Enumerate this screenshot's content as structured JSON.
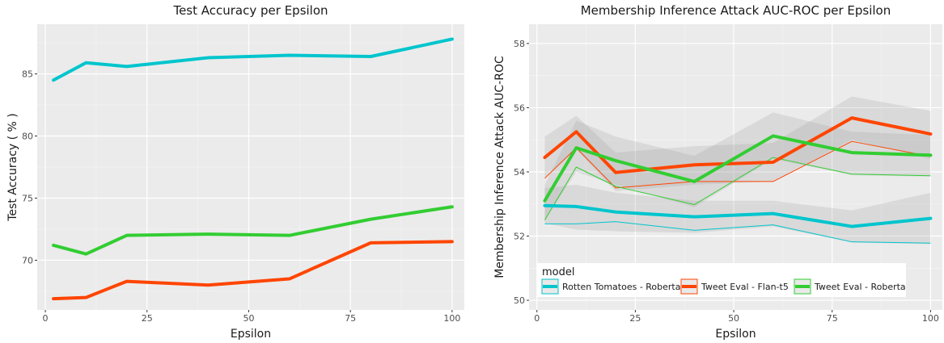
{
  "chart_data": [
    {
      "type": "line",
      "title": "Test Accuracy per Epsilon",
      "xlabel": "Epsilon",
      "ylabel": "Test Accuracy ( % )",
      "xlim": [
        -2,
        103
      ],
      "ylim": [
        66,
        89
      ],
      "x_ticks": [
        0,
        25,
        50,
        75,
        100
      ],
      "y_ticks": [
        70,
        75,
        80,
        85
      ],
      "grid": true,
      "legend": "none",
      "x": [
        2,
        10,
        20,
        40,
        60,
        80,
        100
      ],
      "series": [
        {
          "color": "#00c5cd",
          "values": [
            84.5,
            85.9,
            85.6,
            86.3,
            86.5,
            86.4,
            87.8
          ]
        },
        {
          "color": "#ff4500",
          "values": [
            66.9,
            67.0,
            68.3,
            68.0,
            68.5,
            71.4,
            71.5
          ]
        },
        {
          "color": "#32cd32",
          "values": [
            71.2,
            70.5,
            72.0,
            72.1,
            72.0,
            73.3,
            74.3
          ]
        }
      ]
    },
    {
      "type": "line",
      "title": "Membership Inference Attack AUC-ROC per Epsilon",
      "xlabel": "Epsilon",
      "ylabel": "Membership Inference Attack AUC-ROC",
      "xlim": [
        -2,
        103
      ],
      "ylim": [
        49.7,
        58.6
      ],
      "x_ticks": [
        0,
        25,
        50,
        75,
        100
      ],
      "y_ticks": [
        50,
        52,
        54,
        56,
        58
      ],
      "grid": true,
      "legend": "bottom-left",
      "legend_title": "model",
      "x": [
        2,
        10,
        20,
        40,
        60,
        80,
        100
      ],
      "series": [
        {
          "name": "Rotten Tomatoes - Roberta",
          "color": "#00c5cd",
          "values": [
            52.95,
            52.92,
            52.75,
            52.6,
            52.7,
            52.3,
            52.55
          ],
          "thin": [
            52.38,
            52.38,
            52.45,
            52.18,
            52.35,
            51.82,
            51.78
          ],
          "band_upper": [
            53.5,
            53.6,
            53.35,
            53.1,
            53.1,
            52.8,
            53.35
          ],
          "band_lower": [
            52.4,
            52.2,
            52.15,
            52.1,
            52.3,
            51.8,
            51.75
          ]
        },
        {
          "name": "Tweet Eval - Flan-t5",
          "color": "#ff4500",
          "values": [
            54.45,
            55.25,
            53.98,
            54.22,
            54.3,
            55.68,
            55.18
          ],
          "thin": [
            53.8,
            54.75,
            53.5,
            53.7,
            53.7,
            54.95,
            54.48
          ],
          "band_upper": [
            55.1,
            55.75,
            54.6,
            54.8,
            54.9,
            56.35,
            55.9
          ],
          "band_lower": [
            53.8,
            54.7,
            53.4,
            53.6,
            53.7,
            55.0,
            54.4
          ]
        },
        {
          "name": "Tweet Eval - Roberta",
          "color": "#32cd32",
          "values": [
            53.1,
            54.75,
            54.35,
            53.7,
            55.12,
            54.6,
            54.52
          ],
          "thin": [
            52.5,
            54.15,
            53.55,
            52.98,
            54.45,
            53.93,
            53.88
          ],
          "band_upper": [
            53.6,
            55.6,
            55.1,
            54.5,
            55.85,
            55.25,
            55.15
          ],
          "band_lower": [
            52.5,
            54.0,
            53.6,
            52.9,
            54.4,
            53.9,
            53.85
          ]
        }
      ]
    }
  ]
}
